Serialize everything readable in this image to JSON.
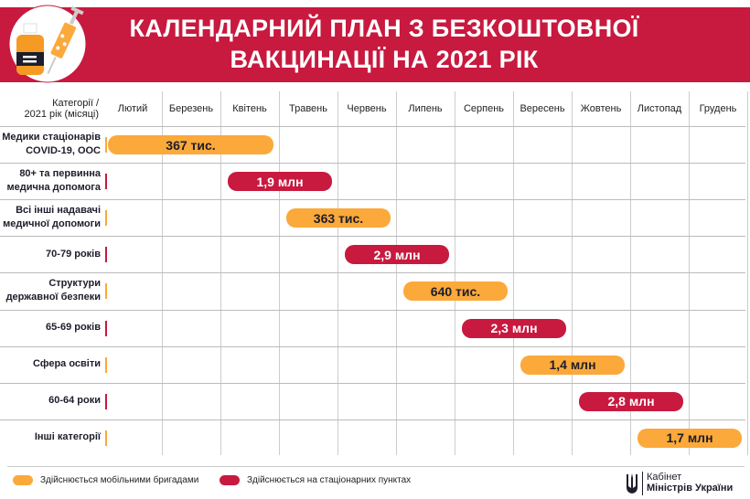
{
  "header": {
    "title_line1": "КАЛЕНДАРНИЙ ПЛАН З БЕЗКОШТОВНОЇ",
    "title_line2": "ВАКЦИНАЦІЇ НА 2021 РІК"
  },
  "colors": {
    "mobile": "#fba93a",
    "stationary": "#c8193f",
    "band": "#c8193f"
  },
  "chart_data": {
    "type": "bar",
    "orientation": "horizontal-gantt",
    "title": "КАЛЕНДАРНИЙ ПЛАН З БЕЗКОШТОВНОЇ ВАКЦИНАЦІЇ НА 2021 РІК",
    "corner_label_line1": "Категорії /",
    "corner_label_line2": "2021 рік (місяці)",
    "months": [
      "Лютий",
      "Березень",
      "Квітень",
      "Травень",
      "Червень",
      "Липень",
      "Серпень",
      "Вересень",
      "Жовтень",
      "Листопад",
      "Грудень"
    ],
    "rows": [
      {
        "line1": "Медики стаціонарів",
        "line2": "COVID-19, ООС",
        "label": "367 тис.",
        "type": "mobile",
        "start": "Лютий",
        "end": "Квітень"
      },
      {
        "line1": "80+ та первинна",
        "line2": "медична допомога",
        "label": "1,9 млн",
        "type": "stationary",
        "start": "Квітень",
        "end": "Травень"
      },
      {
        "line1": "Всі інші надавачі",
        "line2": "медичної допомоги",
        "label": "363 тис.",
        "type": "mobile",
        "start": "Травень",
        "end": "Червень"
      },
      {
        "line1": "70-79 років",
        "line2": "",
        "label": "2,9 млн",
        "type": "stationary",
        "start": "Червень",
        "end": "Липень"
      },
      {
        "line1": "Структури",
        "line2": "державної безпеки",
        "label": "640 тис.",
        "type": "mobile",
        "start": "Липень",
        "end": "Серпень"
      },
      {
        "line1": "65-69 років",
        "line2": "",
        "label": "2,3 млн",
        "type": "stationary",
        "start": "Серпень",
        "end": "Вересень"
      },
      {
        "line1": "Сфера освіти",
        "line2": "",
        "label": "1,4 млн",
        "type": "mobile",
        "start": "Вересень",
        "end": "Жовтень"
      },
      {
        "line1": "60-64 роки",
        "line2": "",
        "label": "2,8 млн",
        "type": "stationary",
        "start": "Жовтень",
        "end": "Листопад"
      },
      {
        "line1": "Інші категорії",
        "line2": "",
        "label": "1,7 млн",
        "type": "mobile",
        "start": "Листопад",
        "end": "Грудень"
      }
    ],
    "legend": [
      {
        "type": "mobile",
        "label": "Здійснюється мобільними бригадами"
      },
      {
        "type": "stationary",
        "label": "Здійснюється на стаціонарних пунктах"
      }
    ],
    "grid": true,
    "legend_position": "bottom-left"
  },
  "footer": {
    "logo_line1": "Кабінет",
    "logo_line2": "Міністрів України"
  }
}
